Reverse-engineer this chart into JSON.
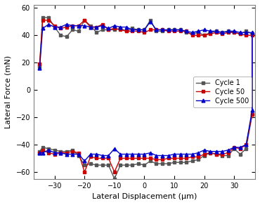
{
  "title": "",
  "xlabel": "Lateral Displacement (μm)",
  "ylabel": "Lateral Force (mN)",
  "xlim": [
    -37,
    37
  ],
  "ylim": [
    -65,
    62
  ],
  "xticks": [
    -30,
    -20,
    -10,
    0,
    10,
    20,
    30
  ],
  "yticks": [
    -60,
    -40,
    -20,
    0,
    20,
    40,
    60
  ],
  "legend_labels": [
    "Cycle 1",
    "Cycle 50",
    "Cycle 500"
  ],
  "legend_colors": [
    "#555555",
    "#cc0000",
    "#0000cc"
  ],
  "cycle1_x": [
    -35,
    -34,
    -32,
    -30,
    -28,
    -26,
    -24,
    -22,
    -20,
    -18,
    -16,
    -14,
    -12,
    -10,
    -8,
    -6,
    -4,
    -2,
    0,
    2,
    4,
    6,
    8,
    10,
    12,
    14,
    16,
    18,
    20,
    22,
    24,
    26,
    28,
    30,
    32,
    34,
    36,
    36,
    34,
    32,
    30,
    28,
    26,
    24,
    22,
    20,
    18,
    16,
    14,
    12,
    10,
    8,
    6,
    4,
    2,
    0,
    -2,
    -4,
    -6,
    -8,
    -10,
    -12,
    -14,
    -16,
    -18,
    -20,
    -22,
    -24,
    -26,
    -28,
    -30,
    -32,
    -34,
    -35
  ],
  "cycle1_y": [
    17,
    53,
    53,
    46,
    40,
    39,
    44,
    43,
    51,
    47,
    42,
    44,
    44,
    44,
    45,
    43,
    45,
    44,
    44,
    51,
    43,
    43,
    44,
    44,
    44,
    42,
    41,
    42,
    40,
    42,
    43,
    42,
    43,
    42,
    41,
    43,
    41,
    -18,
    -43,
    -47,
    -43,
    -48,
    -48,
    -47,
    -46,
    -48,
    -51,
    -52,
    -53,
    -53,
    -53,
    -54,
    -54,
    -54,
    -52,
    -55,
    -54,
    -55,
    -55,
    -55,
    -65,
    -55,
    -55,
    -55,
    -54,
    -55,
    -48,
    -44,
    -45,
    -45,
    -44,
    -43,
    -42,
    -45
  ],
  "cycle50_x": [
    -35,
    -34,
    -32,
    -30,
    -28,
    -26,
    -24,
    -22,
    -20,
    -18,
    -16,
    -14,
    -12,
    -10,
    -8,
    -6,
    -4,
    -2,
    0,
    2,
    4,
    6,
    8,
    10,
    12,
    14,
    16,
    18,
    20,
    22,
    24,
    26,
    28,
    30,
    32,
    34,
    36,
    36,
    34,
    32,
    30,
    28,
    26,
    24,
    22,
    20,
    18,
    16,
    14,
    12,
    10,
    8,
    6,
    4,
    2,
    0,
    -2,
    -4,
    -6,
    -8,
    -10,
    -12,
    -14,
    -16,
    -18,
    -20,
    -22,
    -24,
    -26,
    -28,
    -30,
    -32,
    -34,
    -35
  ],
  "cycle50_y": [
    19,
    51,
    51,
    47,
    45,
    46,
    47,
    47,
    51,
    46,
    46,
    48,
    44,
    45,
    44,
    43,
    43,
    43,
    42,
    44,
    44,
    44,
    43,
    43,
    43,
    43,
    40,
    40,
    40,
    41,
    42,
    41,
    42,
    42,
    41,
    40,
    40,
    -18,
    -40,
    -43,
    -42,
    -46,
    -47,
    -47,
    -46,
    -47,
    -49,
    -49,
    -50,
    -50,
    -50,
    -50,
    -51,
    -51,
    -50,
    -50,
    -50,
    -50,
    -50,
    -50,
    -60,
    -50,
    -50,
    -50,
    -49,
    -60,
    -46,
    -45,
    -46,
    -46,
    -47,
    -46,
    -44,
    -46
  ],
  "cycle500_x": [
    -35,
    -34,
    -32,
    -30,
    -28,
    -26,
    -24,
    -22,
    -20,
    -18,
    -16,
    -14,
    -12,
    -10,
    -8,
    -6,
    -4,
    -2,
    0,
    2,
    4,
    6,
    8,
    10,
    12,
    14,
    16,
    18,
    20,
    22,
    24,
    26,
    28,
    30,
    32,
    34,
    36,
    36,
    34,
    32,
    30,
    28,
    26,
    24,
    22,
    20,
    18,
    16,
    14,
    12,
    10,
    8,
    6,
    4,
    2,
    0,
    -2,
    -4,
    -6,
    -8,
    -10,
    -12,
    -14,
    -16,
    -18,
    -20,
    -22,
    -24,
    -26,
    -28,
    -30,
    -32,
    -34,
    -35
  ],
  "cycle500_y": [
    16,
    45,
    48,
    46,
    46,
    48,
    47,
    47,
    47,
    46,
    46,
    47,
    45,
    47,
    46,
    46,
    44,
    44,
    44,
    50,
    44,
    44,
    44,
    44,
    44,
    43,
    42,
    43,
    44,
    43,
    43,
    42,
    43,
    43,
    42,
    42,
    42,
    -15,
    -40,
    -42,
    -42,
    -44,
    -45,
    -45,
    -45,
    -44,
    -46,
    -47,
    -47,
    -47,
    -47,
    -48,
    -48,
    -48,
    -46,
    -47,
    -47,
    -47,
    -47,
    -47,
    -43,
    -48,
    -48,
    -47,
    -47,
    -52,
    -47,
    -47,
    -47,
    -46,
    -46,
    -44,
    -46,
    -46
  ],
  "linewidth": 1.0,
  "markersize": 3.5
}
